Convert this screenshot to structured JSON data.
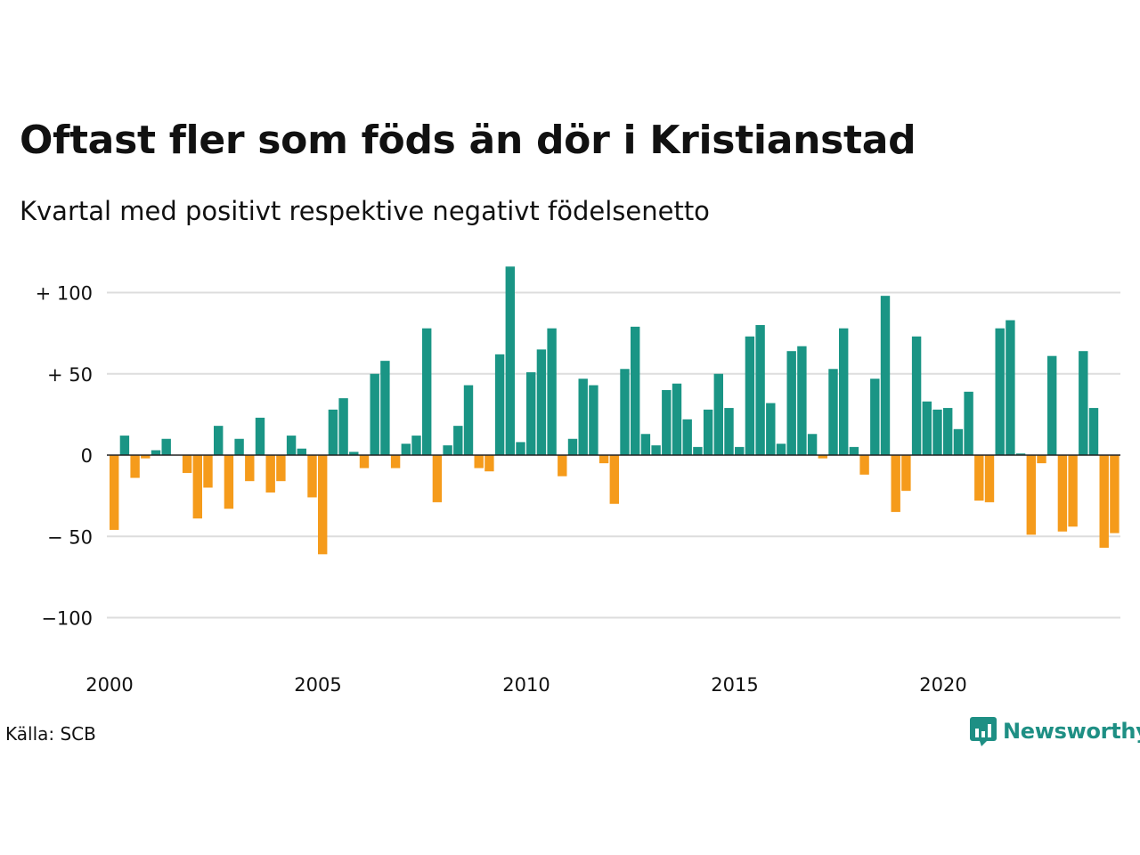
{
  "title": "Oftast fler som föds än dör i Kristianstad",
  "subtitle": "Kvartal med positivt respektive negativt födelsenetto",
  "source": "Källa: SCB",
  "logo": {
    "text": "Newsworthy",
    "icon": "newsworthy-chart-icon",
    "color": "#1e8f84"
  },
  "colors": {
    "positive": "#1a9585",
    "negative": "#f59b1b",
    "grid": "#dddddd",
    "zero": "#222222"
  },
  "chart_data": {
    "type": "bar",
    "xlabel": "",
    "ylabel": "",
    "ylim": [
      -125,
      125
    ],
    "yticks": [
      {
        "value": 100,
        "label": "+ 100"
      },
      {
        "value": 50,
        "label": "+  50"
      },
      {
        "value": 0,
        "label": "0"
      },
      {
        "value": -50,
        "label": "− 50"
      },
      {
        "value": -100,
        "label": "−100"
      }
    ],
    "xticks": [
      "2000",
      "2005",
      "2010",
      "2015",
      "2020"
    ],
    "start_year": 2000,
    "grid": true,
    "values": [
      -46,
      12,
      -14,
      -2,
      3,
      10,
      0,
      -11,
      -39,
      -20,
      18,
      -33,
      10,
      -16,
      23,
      -23,
      -16,
      12,
      4,
      -26,
      -61,
      28,
      35,
      2,
      -8,
      50,
      58,
      -8,
      7,
      12,
      78,
      -29,
      6,
      18,
      43,
      -8,
      -10,
      62,
      116,
      8,
      51,
      65,
      78,
      -13,
      10,
      47,
      43,
      -5,
      -30,
      53,
      79,
      13,
      6,
      40,
      44,
      22,
      5,
      28,
      50,
      29,
      5,
      73,
      80,
      32,
      7,
      64,
      67,
      13,
      -2,
      53,
      78,
      5,
      -12,
      47,
      98,
      -35,
      -22,
      73,
      33,
      28,
      29,
      16,
      39,
      -28,
      -29,
      78,
      83,
      1,
      -49,
      -5,
      61,
      -47,
      -44,
      64,
      29,
      -57,
      -48
    ]
  }
}
